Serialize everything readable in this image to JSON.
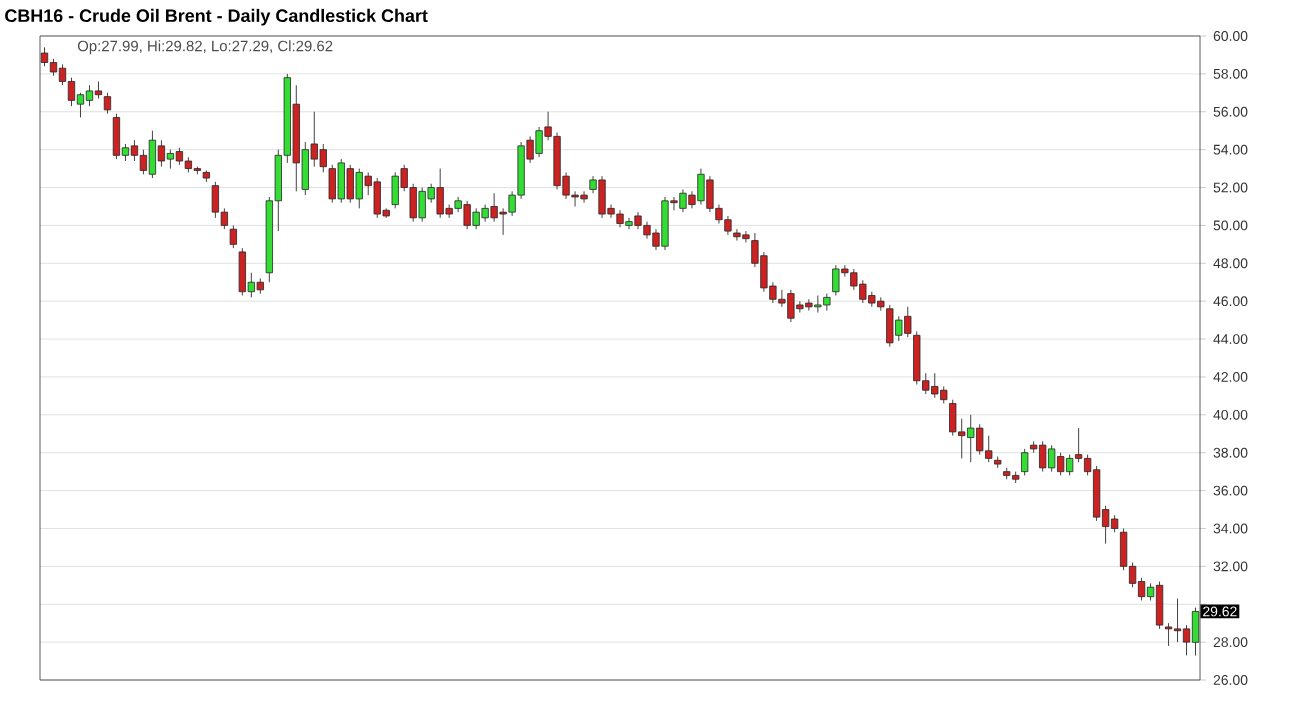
{
  "chart_data": {
    "type": "candlestick",
    "title": "CBH16 - Crude Oil Brent - Daily Candlestick Chart",
    "annotations": [
      "Op:27.99, Hi:29.82, Lo:27.29, Cl:29.62",
      {
        "text": "29.62",
        "y": 29.62
      }
    ],
    "categories": [
      null,
      null,
      null,
      null,
      null,
      null,
      null,
      null,
      null,
      null,
      null,
      null,
      null,
      null,
      null,
      null,
      null,
      null,
      null,
      null,
      null,
      null,
      null,
      null,
      null,
      null,
      null,
      null,
      null,
      null,
      null,
      null,
      null,
      null,
      null,
      null,
      null,
      null,
      null,
      null,
      null,
      null,
      null,
      null,
      null,
      null,
      null,
      null,
      null,
      null,
      null,
      null,
      null,
      null,
      null,
      null,
      null,
      null,
      null,
      null,
      null,
      null,
      null,
      null,
      null,
      null,
      null,
      null,
      null,
      null,
      null,
      null,
      null,
      null,
      null,
      null,
      null,
      null,
      null,
      null,
      null,
      null,
      null,
      null,
      null,
      null,
      null,
      null,
      null,
      null,
      null,
      null,
      null,
      null,
      null,
      null,
      null,
      null,
      null,
      null,
      null,
      null,
      null,
      null,
      null,
      null,
      null,
      null,
      null,
      null,
      null,
      null,
      null,
      null,
      null,
      null,
      null,
      null,
      null,
      null,
      null,
      null,
      null,
      null,
      null,
      null,
      null,
      null,
      null
    ],
    "ohlc": [
      [
        59.1,
        59.4,
        58.4,
        58.6
      ],
      [
        58.6,
        58.8,
        57.9,
        58.1
      ],
      [
        58.3,
        58.5,
        57.4,
        57.6
      ],
      [
        57.6,
        57.8,
        56.3,
        56.6
      ],
      [
        56.4,
        57.0,
        55.7,
        56.9
      ],
      [
        56.6,
        57.4,
        56.3,
        57.1
      ],
      [
        57.1,
        57.6,
        56.7,
        56.9
      ],
      [
        56.8,
        57.0,
        55.9,
        56.1
      ],
      [
        55.7,
        55.9,
        53.5,
        53.7
      ],
      [
        53.7,
        54.3,
        53.4,
        54.1
      ],
      [
        54.2,
        54.5,
        53.4,
        53.7
      ],
      [
        53.7,
        54.0,
        52.7,
        52.9
      ],
      [
        52.7,
        55.0,
        52.5,
        54.5
      ],
      [
        54.2,
        54.5,
        53.1,
        53.4
      ],
      [
        53.5,
        54.0,
        53.0,
        53.8
      ],
      [
        53.9,
        54.1,
        53.2,
        53.4
      ],
      [
        53.4,
        53.6,
        52.8,
        53.0
      ],
      [
        53.0,
        53.1,
        52.7,
        52.9
      ],
      [
        52.8,
        52.9,
        52.3,
        52.5
      ],
      [
        52.1,
        52.3,
        50.4,
        50.7
      ],
      [
        50.7,
        50.9,
        49.8,
        50.0
      ],
      [
        49.8,
        50.0,
        48.8,
        49.0
      ],
      [
        48.6,
        48.8,
        46.3,
        46.5
      ],
      [
        46.5,
        47.5,
        46.2,
        47.0
      ],
      [
        47.0,
        47.2,
        46.4,
        46.6
      ],
      [
        47.5,
        51.5,
        47.0,
        51.3
      ],
      [
        51.3,
        54.0,
        49.7,
        53.7
      ],
      [
        53.7,
        58.0,
        53.3,
        57.8
      ],
      [
        56.4,
        57.4,
        51.8,
        53.3
      ],
      [
        51.9,
        54.4,
        51.6,
        54.0
      ],
      [
        54.3,
        56.0,
        53.1,
        53.5
      ],
      [
        54.0,
        54.3,
        52.8,
        53.1
      ],
      [
        53.0,
        53.2,
        51.2,
        51.4
      ],
      [
        51.4,
        53.5,
        51.2,
        53.3
      ],
      [
        53.0,
        53.2,
        51.2,
        51.4
      ],
      [
        51.4,
        53.0,
        50.9,
        52.8
      ],
      [
        52.6,
        52.8,
        51.6,
        52.1
      ],
      [
        52.3,
        52.5,
        50.4,
        50.6
      ],
      [
        50.8,
        50.9,
        50.4,
        50.5
      ],
      [
        51.1,
        52.8,
        50.9,
        52.6
      ],
      [
        53.0,
        53.2,
        51.8,
        52.0
      ],
      [
        52.0,
        52.2,
        50.2,
        50.4
      ],
      [
        50.4,
        52.0,
        50.2,
        51.8
      ],
      [
        51.4,
        52.2,
        51.2,
        52.0
      ],
      [
        52.0,
        53.0,
        50.4,
        50.6
      ],
      [
        50.9,
        51.1,
        50.4,
        50.6
      ],
      [
        50.9,
        51.5,
        50.7,
        51.3
      ],
      [
        51.1,
        51.3,
        49.8,
        50.0
      ],
      [
        50.0,
        50.9,
        49.8,
        50.7
      ],
      [
        50.4,
        51.1,
        50.2,
        50.9
      ],
      [
        51.0,
        51.7,
        50.2,
        50.4
      ],
      [
        50.7,
        50.9,
        49.5,
        50.6
      ],
      [
        50.7,
        51.8,
        50.5,
        51.6
      ],
      [
        51.6,
        54.4,
        51.4,
        54.2
      ],
      [
        54.5,
        54.7,
        53.3,
        53.5
      ],
      [
        53.8,
        55.2,
        53.6,
        55.0
      ],
      [
        55.2,
        56.0,
        54.5,
        54.7
      ],
      [
        54.7,
        54.9,
        51.9,
        52.1
      ],
      [
        52.6,
        52.8,
        51.4,
        51.6
      ],
      [
        51.6,
        51.8,
        51.0,
        51.5
      ],
      [
        51.6,
        51.8,
        51.2,
        51.4
      ],
      [
        51.9,
        52.6,
        51.7,
        52.4
      ],
      [
        52.4,
        52.6,
        50.4,
        50.6
      ],
      [
        50.9,
        51.1,
        50.4,
        50.6
      ],
      [
        50.6,
        50.8,
        49.9,
        50.1
      ],
      [
        50.0,
        50.4,
        49.8,
        50.2
      ],
      [
        50.5,
        50.7,
        49.8,
        50.0
      ],
      [
        50.0,
        50.2,
        49.3,
        49.5
      ],
      [
        49.6,
        49.8,
        48.7,
        48.9
      ],
      [
        48.9,
        51.5,
        48.7,
        51.3
      ],
      [
        51.3,
        51.5,
        50.8,
        51.2
      ],
      [
        50.9,
        51.9,
        50.7,
        51.7
      ],
      [
        51.6,
        51.8,
        50.9,
        51.1
      ],
      [
        51.3,
        53.0,
        51.1,
        52.7
      ],
      [
        52.4,
        52.6,
        50.7,
        50.9
      ],
      [
        50.9,
        51.1,
        50.1,
        50.3
      ],
      [
        50.3,
        50.5,
        49.5,
        49.7
      ],
      [
        49.6,
        49.8,
        49.2,
        49.4
      ],
      [
        49.5,
        49.7,
        49.1,
        49.3
      ],
      [
        49.2,
        49.6,
        47.8,
        48.0
      ],
      [
        48.4,
        48.6,
        46.5,
        46.7
      ],
      [
        46.8,
        47.0,
        45.9,
        46.1
      ],
      [
        46.1,
        46.6,
        45.7,
        45.9
      ],
      [
        46.4,
        46.6,
        44.9,
        45.1
      ],
      [
        45.8,
        46.0,
        45.4,
        45.6
      ],
      [
        45.9,
        46.1,
        45.5,
        45.7
      ],
      [
        45.7,
        46.3,
        45.4,
        45.8
      ],
      [
        45.8,
        46.4,
        45.5,
        46.2
      ],
      [
        46.5,
        47.9,
        46.3,
        47.7
      ],
      [
        47.7,
        47.9,
        47.3,
        47.5
      ],
      [
        47.5,
        47.7,
        46.6,
        46.8
      ],
      [
        46.9,
        47.1,
        45.9,
        46.1
      ],
      [
        46.3,
        46.5,
        45.7,
        45.9
      ],
      [
        46.0,
        46.2,
        45.5,
        45.7
      ],
      [
        45.6,
        45.8,
        43.6,
        43.8
      ],
      [
        44.2,
        45.2,
        43.9,
        45.0
      ],
      [
        45.2,
        45.7,
        44.1,
        44.3
      ],
      [
        44.2,
        44.4,
        41.6,
        41.8
      ],
      [
        41.8,
        42.2,
        41.1,
        41.3
      ],
      [
        41.5,
        42.2,
        40.9,
        41.1
      ],
      [
        41.3,
        41.5,
        40.6,
        40.8
      ],
      [
        40.6,
        40.8,
        38.9,
        39.1
      ],
      [
        39.1,
        39.8,
        37.7,
        38.9
      ],
      [
        38.8,
        40.0,
        37.5,
        39.3
      ],
      [
        39.3,
        39.5,
        37.9,
        38.1
      ],
      [
        38.1,
        38.9,
        37.5,
        37.7
      ],
      [
        37.6,
        37.8,
        37.2,
        37.4
      ],
      [
        37.0,
        37.2,
        36.6,
        36.8
      ],
      [
        36.8,
        37.0,
        36.4,
        36.6
      ],
      [
        37.0,
        38.2,
        36.8,
        38.0
      ],
      [
        38.4,
        38.6,
        38.0,
        38.2
      ],
      [
        38.4,
        38.6,
        37.0,
        37.2
      ],
      [
        37.2,
        38.4,
        37.0,
        38.2
      ],
      [
        37.8,
        38.0,
        36.8,
        37.0
      ],
      [
        37.0,
        37.9,
        36.8,
        37.7
      ],
      [
        37.9,
        39.3,
        37.5,
        37.7
      ],
      [
        37.7,
        37.9,
        36.8,
        37.0
      ],
      [
        37.1,
        37.3,
        34.4,
        34.6
      ],
      [
        35.0,
        35.2,
        33.2,
        34.1
      ],
      [
        34.5,
        34.7,
        33.8,
        34.0
      ],
      [
        33.8,
        34.0,
        31.8,
        32.0
      ],
      [
        32.0,
        32.2,
        30.9,
        31.1
      ],
      [
        31.2,
        31.4,
        30.2,
        30.4
      ],
      [
        30.4,
        31.1,
        30.2,
        30.9
      ],
      [
        31.0,
        31.2,
        28.7,
        28.9
      ],
      [
        28.8,
        29.0,
        27.8,
        28.7
      ],
      [
        28.7,
        30.3,
        28.0,
        28.6
      ],
      [
        28.7,
        28.9,
        27.3,
        28.0
      ],
      [
        27.99,
        29.82,
        27.29,
        29.62
      ]
    ],
    "colors": [
      "#cc2222",
      "#cc2222",
      "#cc2222",
      "#cc2222",
      "#33dd33",
      "#33dd33",
      "#cc2222",
      "#cc2222",
      "#cc2222",
      "#33dd33",
      "#cc2222",
      "#cc2222",
      "#33dd33",
      "#cc2222",
      "#33dd33",
      "#cc2222",
      "#cc2222",
      "#cc2222",
      "#cc2222",
      "#cc2222",
      "#cc2222",
      "#cc2222",
      "#cc2222",
      "#33dd33",
      "#cc2222",
      "#33dd33",
      "#33dd33",
      "#33dd33",
      "#cc2222",
      "#33dd33",
      "#cc2222",
      "#cc2222",
      "#cc2222",
      "#33dd33",
      "#cc2222",
      "#33dd33",
      "#cc2222",
      "#cc2222",
      "#cc2222",
      "#33dd33",
      "#cc2222",
      "#cc2222",
      "#33dd33",
      "#33dd33",
      "#cc2222",
      "#cc2222",
      "#33dd33",
      "#cc2222",
      "#33dd33",
      "#33dd33",
      "#cc2222",
      "#cc2222",
      "#33dd33",
      "#33dd33",
      "#cc2222",
      "#33dd33",
      "#cc2222",
      "#cc2222",
      "#cc2222",
      "#cc2222",
      "#cc2222",
      "#33dd33",
      "#cc2222",
      "#cc2222",
      "#cc2222",
      "#33dd33",
      "#cc2222",
      "#cc2222",
      "#cc2222",
      "#33dd33",
      "#cc2222",
      "#33dd33",
      "#cc2222",
      "#33dd33",
      "#cc2222",
      "#cc2222",
      "#cc2222",
      "#cc2222",
      "#cc2222",
      "#cc2222",
      "#cc2222",
      "#cc2222",
      "#cc2222",
      "#cc2222",
      "#cc2222",
      "#cc2222",
      "#33dd33",
      "#33dd33",
      "#33dd33",
      "#cc2222",
      "#cc2222",
      "#cc2222",
      "#cc2222",
      "#cc2222",
      "#cc2222",
      "#33dd33",
      "#cc2222",
      "#cc2222",
      "#cc2222",
      "#cc2222",
      "#cc2222",
      "#cc2222",
      "#cc2222",
      "#33dd33",
      "#cc2222",
      "#cc2222",
      "#cc2222",
      "#cc2222",
      "#cc2222",
      "#33dd33",
      "#cc2222",
      "#cc2222",
      "#33dd33",
      "#cc2222",
      "#33dd33",
      "#cc2222",
      "#cc2222",
      "#cc2222",
      "#cc2222",
      "#cc2222",
      "#cc2222",
      "#cc2222",
      "#cc2222",
      "#33dd33",
      "#cc2222",
      "#cc2222",
      "#cc2222",
      "#cc2222",
      "#33dd33"
    ],
    "ylim": [
      26,
      60
    ],
    "yticks": [
      {
        "value": 26,
        "label": "26.00"
      },
      {
        "value": 28,
        "label": "28.00"
      },
      {
        "value": 30,
        "label": null
      },
      {
        "value": 32,
        "label": "32.00"
      },
      {
        "value": 34,
        "label": "34.00"
      },
      {
        "value": 36,
        "label": "36.00"
      },
      {
        "value": 38,
        "label": "38.00"
      },
      {
        "value": 40,
        "label": "40.00"
      },
      {
        "value": 42,
        "label": "42.00"
      },
      {
        "value": 44,
        "label": "44.00"
      },
      {
        "value": 46,
        "label": "46.00"
      },
      {
        "value": 48,
        "label": "48.00"
      },
      {
        "value": 50,
        "label": "50.00"
      },
      {
        "value": 52,
        "label": "52.00"
      },
      {
        "value": 54,
        "label": "54.00"
      },
      {
        "value": 56,
        "label": "56.00"
      },
      {
        "value": 58,
        "label": "58.00"
      },
      {
        "value": 60,
        "label": "60.00"
      }
    ],
    "grid": "y"
  }
}
